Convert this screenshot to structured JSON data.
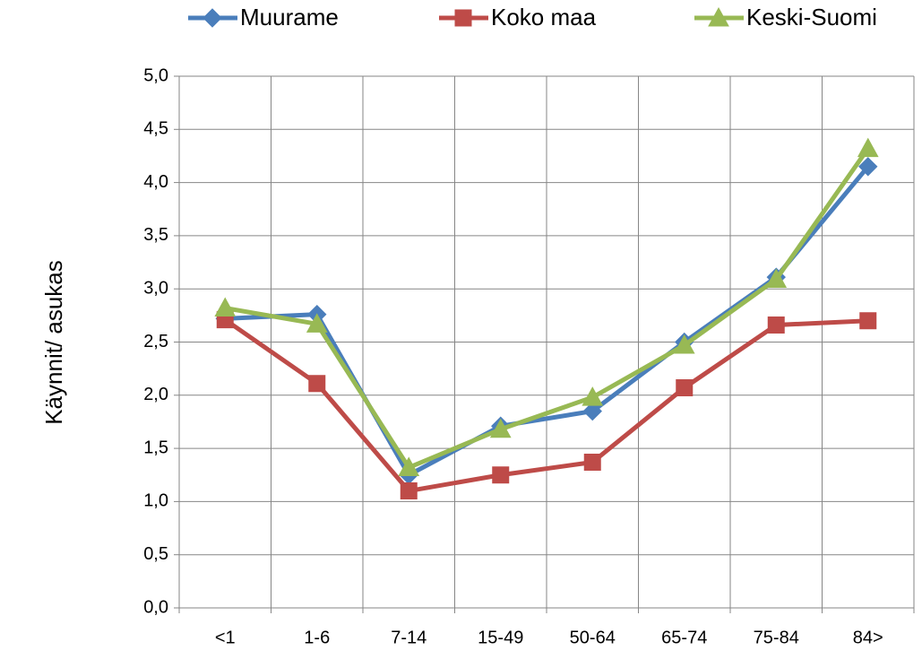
{
  "chart_data": {
    "type": "line",
    "y_label": "Käynnit/ asukas",
    "categories": [
      "<1",
      "1-6",
      "7-14",
      "15-49",
      "50-64",
      "65-74",
      "75-84",
      "84>"
    ],
    "series": [
      {
        "name": "Muurame",
        "color": "#4a7ebb",
        "marker": "diamond",
        "values": [
          2.72,
          2.76,
          1.25,
          1.71,
          1.85,
          2.5,
          3.11,
          4.15
        ]
      },
      {
        "name": "Koko maa",
        "color": "#be4b48",
        "marker": "square",
        "values": [
          2.71,
          2.11,
          1.1,
          1.25,
          1.37,
          2.07,
          2.66,
          2.7
        ]
      },
      {
        "name": "Keski-Suomi",
        "color": "#98b954",
        "marker": "triangle",
        "values": [
          2.82,
          2.67,
          1.32,
          1.68,
          1.98,
          2.47,
          3.09,
          4.32
        ]
      }
    ],
    "ylim": [
      0,
      5
    ],
    "yticks": [
      {
        "value": 0,
        "label": "0,0"
      },
      {
        "value": 0.5,
        "label": "0,5"
      },
      {
        "value": 1,
        "label": "1,0"
      },
      {
        "value": 1.5,
        "label": "1,5"
      },
      {
        "value": 2,
        "label": "2,0"
      },
      {
        "value": 2.5,
        "label": "2,5"
      },
      {
        "value": 3,
        "label": "3,0"
      },
      {
        "value": 3.5,
        "label": "3,5"
      },
      {
        "value": 4,
        "label": "4,0"
      },
      {
        "value": 4.5,
        "label": "4,5"
      },
      {
        "value": 5,
        "label": "5,0"
      }
    ],
    "grid": true,
    "legend": "top"
  }
}
